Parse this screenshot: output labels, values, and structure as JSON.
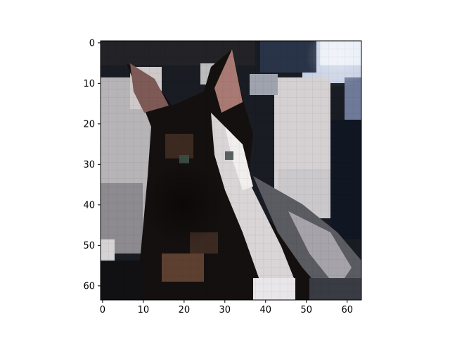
{
  "figure": {
    "image_subject": "cat",
    "image_grid": {
      "cols": 64,
      "rows": 64
    },
    "background_color": "#ffffff",
    "axis_color": "#000000"
  },
  "axes": {
    "x": {
      "min": -0.5,
      "max": 63.5,
      "ticks": [
        0,
        10,
        20,
        30,
        40,
        50,
        60
      ],
      "tick_labels": [
        "0",
        "10",
        "20",
        "30",
        "40",
        "50",
        "60"
      ]
    },
    "y": {
      "min": -0.5,
      "max": 63.5,
      "ticks": [
        0,
        10,
        20,
        30,
        40,
        50,
        60
      ],
      "tick_labels": [
        "0",
        "10",
        "20",
        "30",
        "40",
        "50",
        "60"
      ],
      "inverted": true
    }
  }
}
